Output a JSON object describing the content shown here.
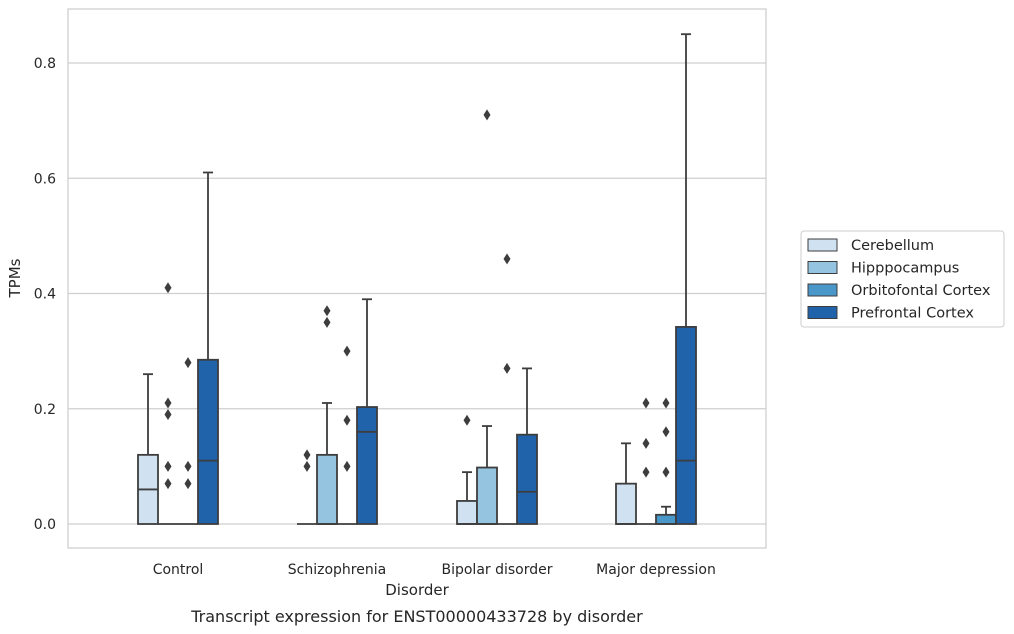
{
  "caption": "Transcript expression for ENST00000433728 by disorder",
  "chart_data": {
    "type": "box",
    "xlabel": "Disorder",
    "ylabel": "TPMs",
    "ylim": [
      -0.04,
      0.894
    ],
    "yticks": [
      0.0,
      0.2,
      0.4,
      0.6,
      0.8
    ],
    "ytick_labels": [
      "0.0",
      "0.2",
      "0.4",
      "0.6",
      "0.8"
    ],
    "grid": "horizontal",
    "legend_position": "right",
    "categories": [
      "Control",
      "Schizophrenia",
      "Bipolar disorder",
      "Major depression"
    ],
    "series": [
      {
        "name": "Cerebellum",
        "color": "#d0e1f2",
        "boxes": [
          {
            "q1": 0.0,
            "median": 0.06,
            "q3": 0.12,
            "whisker_low": 0.0,
            "whisker_high": 0.26,
            "outliers": []
          },
          {
            "q1": 0.0,
            "median": 0.0,
            "q3": 0.0,
            "whisker_low": 0.0,
            "whisker_high": 0.0,
            "outliers": [
              0.1,
              0.12
            ]
          },
          {
            "q1": 0.0,
            "median": 0.0,
            "q3": 0.04,
            "whisker_low": 0.0,
            "whisker_high": 0.09,
            "outliers": [
              0.18
            ]
          },
          {
            "q1": 0.0,
            "median": 0.0,
            "q3": 0.07,
            "whisker_low": 0.0,
            "whisker_high": 0.14,
            "outliers": []
          }
        ]
      },
      {
        "name": "Hipppocampus",
        "color": "#94c4df",
        "boxes": [
          {
            "q1": 0.0,
            "median": 0.0,
            "q3": 0.0,
            "whisker_low": 0.0,
            "whisker_high": 0.0,
            "outliers": [
              0.07,
              0.1,
              0.19,
              0.21,
              0.41
            ]
          },
          {
            "q1": 0.0,
            "median": 0.0,
            "q3": 0.12,
            "whisker_low": 0.0,
            "whisker_high": 0.21,
            "outliers": [
              0.35,
              0.37
            ]
          },
          {
            "q1": 0.0,
            "median": 0.0,
            "q3": 0.098,
            "whisker_low": 0.0,
            "whisker_high": 0.17,
            "outliers": [
              0.71
            ]
          },
          {
            "q1": 0.0,
            "median": 0.0,
            "q3": 0.0,
            "whisker_low": 0.0,
            "whisker_high": 0.0,
            "outliers": [
              0.09,
              0.14,
              0.21
            ]
          }
        ]
      },
      {
        "name": "Orbitofontal Cortex",
        "color": "#4a98c9",
        "boxes": [
          {
            "q1": 0.0,
            "median": 0.0,
            "q3": 0.0,
            "whisker_low": 0.0,
            "whisker_high": 0.0,
            "outliers": [
              0.07,
              0.1,
              0.28
            ]
          },
          {
            "q1": 0.0,
            "median": 0.0,
            "q3": 0.0,
            "whisker_low": 0.0,
            "whisker_high": 0.0,
            "outliers": [
              0.1,
              0.18,
              0.3
            ]
          },
          {
            "q1": 0.0,
            "median": 0.0,
            "q3": 0.0,
            "whisker_low": 0.0,
            "whisker_high": 0.0,
            "outliers": [
              0.27,
              0.46
            ]
          },
          {
            "q1": 0.0,
            "median": 0.0,
            "q3": 0.016,
            "whisker_low": 0.0,
            "whisker_high": 0.03,
            "outliers": [
              0.09,
              0.16,
              0.21
            ]
          }
        ]
      },
      {
        "name": "Prefrontal Cortex",
        "color": "#2163aa",
        "boxes": [
          {
            "q1": 0.0,
            "median": 0.11,
            "q3": 0.285,
            "whisker_low": 0.0,
            "whisker_high": 0.61,
            "outliers": []
          },
          {
            "q1": 0.0,
            "median": 0.16,
            "q3": 0.203,
            "whisker_low": 0.0,
            "whisker_high": 0.39,
            "outliers": []
          },
          {
            "q1": 0.0,
            "median": 0.056,
            "q3": 0.155,
            "whisker_low": 0.0,
            "whisker_high": 0.27,
            "outliers": []
          },
          {
            "q1": 0.0,
            "median": 0.11,
            "q3": 0.342,
            "whisker_low": 0.0,
            "whisker_high": 0.85,
            "outliers": []
          }
        ]
      }
    ]
  }
}
